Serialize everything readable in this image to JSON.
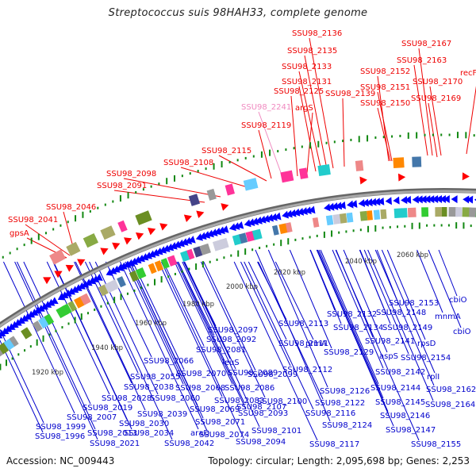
{
  "title": "Streptococcus suis 98HAH33, complete genome",
  "footer": {
    "accession": "Accession: NC_009443",
    "summary": "Topology: circular; Length: 2,095,698 bp; Genes: 2,253"
  },
  "colors": {
    "forward_label": "#ee0000",
    "reverse_label": "#0000cc",
    "highlight_label": "#f08ac0",
    "backbone": "#888888",
    "forward_gene": "#ff0000",
    "reverse_gene": "#0000ff",
    "gc_marker": "#118811"
  },
  "genome": {
    "length_bp": 2095698,
    "genes": 2253,
    "topology": "circular"
  },
  "scale_ticks": [
    "1920 kbp",
    "1940 kbp",
    "1960 kbp",
    "1980 kbp",
    "2000 kbp",
    "2020 kbp",
    "2040 kbp",
    "2060 kbp"
  ],
  "forward_labels": [
    {
      "text": "gpsA",
      "color": "red"
    },
    {
      "text": "SSU98_2041",
      "color": "red"
    },
    {
      "text": "SSU98_2046",
      "color": "red"
    },
    {
      "text": "SSU98_2091",
      "color": "red"
    },
    {
      "text": "SSU98_2098",
      "color": "red"
    },
    {
      "text": "SSU98_2108",
      "color": "red"
    },
    {
      "text": "SSU98_2115",
      "color": "red"
    },
    {
      "text": "SSU98_2119",
      "color": "red"
    },
    {
      "text": "SSU98_2241",
      "color": "pink"
    },
    {
      "text": "SSU98_2125",
      "color": "red"
    },
    {
      "text": "argS",
      "color": "red"
    },
    {
      "text": "SSU98_2131",
      "color": "red"
    },
    {
      "text": "SSU98_2133",
      "color": "red"
    },
    {
      "text": "SSU98_2135",
      "color": "red"
    },
    {
      "text": "SSU98_2136",
      "color": "red"
    },
    {
      "text": "SSU98_2139",
      "color": "red"
    },
    {
      "text": "SSU98_2150",
      "color": "red"
    },
    {
      "text": "SSU98_2151",
      "color": "red"
    },
    {
      "text": "SSU98_2152",
      "color": "red"
    },
    {
      "text": "SSU98_2169",
      "color": "red"
    },
    {
      "text": "SSU98_2170",
      "color": "red"
    },
    {
      "text": "SSU98_2163",
      "color": "red"
    },
    {
      "text": "SSU98_2167",
      "color": "red"
    },
    {
      "text": "recF",
      "color": "red"
    }
  ],
  "reverse_labels": [
    "SSU98_1996",
    "SSU98_1999",
    "SSU98_2007",
    "SSU98_2013",
    "SSU98_2019",
    "SSU98_2021",
    "SSU98_2028",
    "SSU98_2030",
    "SSU98_2034",
    "SSU98_2038",
    "SSU98_2039",
    "SSU98_2042",
    "SSU98_2055",
    "SSU98_2060",
    "araD",
    "SSU98_2066",
    "SSU98_2068",
    "SSU98_2069",
    "SSU98_2070",
    "SSU98_2071",
    "SSU98_2074",
    "SSU98_2081",
    "leuS",
    "SSU98_2083",
    "SSU98_2086",
    "SSU98_2089",
    "SSU98_2092",
    "SSU98_2093",
    "SSU98_2094",
    "SSU98_2097",
    "SSU98_2099",
    "SSU98_2100",
    "SSU98_2101",
    "SSU98_2107",
    "SSU98_2111",
    "SSU98_2112",
    "SSU98_2113",
    "prmA",
    "SSU98_2116",
    "SSU98_2117",
    "SSU98_2122",
    "SSU98_2124",
    "SSU98_2126",
    "SSU98_2129",
    "SSU98_2132",
    "SSU98_2134",
    "SSU98_2141",
    "aspS",
    "SSU98_2142",
    "SSU98_2144",
    "SSU98_2145",
    "SSU98_2146",
    "SSU98_2147",
    "SSU98_2148",
    "SSU98_2149",
    "SSU98_2153",
    "SSU98_2154",
    "rpsD",
    "rplI",
    "SSU98_2155",
    "mnmA",
    "cbiO",
    "cbiO",
    "SSU98_2162",
    "SSU98_2164"
  ]
}
